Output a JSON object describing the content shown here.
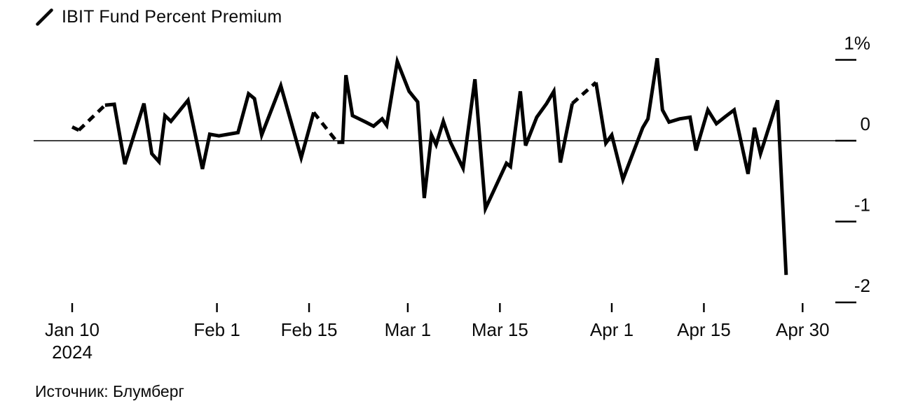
{
  "legend": {
    "series_label": "IBIT Fund Percent Premium",
    "marker": "diagonal-line"
  },
  "source_label": "Источник: Блумберг",
  "colors": {
    "background": "#ffffff",
    "line": "#000000",
    "axis": "#000000",
    "text": "#0a0a0a"
  },
  "chart_data": {
    "type": "line",
    "title": "IBIT Fund Percent Premium",
    "legend_position": "top-left",
    "grid": false,
    "zero_line": true,
    "x_axis": {
      "unit": "date",
      "t_unit": "days since Jan 10, 2024",
      "range": [
        0,
        111.5
      ],
      "ticks": [
        {
          "t": 0,
          "label": "Jan 10",
          "sublabel": "2024"
        },
        {
          "t": 22,
          "label": "Feb 1"
        },
        {
          "t": 36,
          "label": "Feb 15"
        },
        {
          "t": 51,
          "label": "Mar 1"
        },
        {
          "t": 65,
          "label": "Mar 15"
        },
        {
          "t": 82,
          "label": "Apr 1"
        },
        {
          "t": 96,
          "label": "Apr 15"
        },
        {
          "t": 111,
          "label": "Apr 30"
        }
      ]
    },
    "y_axis": {
      "unit": "percent",
      "side": "right",
      "range": [
        -2.2,
        1.1
      ],
      "ticks": [
        {
          "v": 1,
          "label": "1%"
        },
        {
          "v": 0,
          "label": "0"
        },
        {
          "v": -1,
          "label": "-1"
        },
        {
          "v": -2,
          "label": "-2"
        }
      ]
    },
    "segments": [
      {
        "style": "solid",
        "points": [
          [
            0,
            0.17
          ],
          [
            1,
            0.13
          ]
        ]
      },
      {
        "style": "dashed",
        "points": [
          [
            1,
            0.13
          ],
          [
            5,
            0.44
          ]
        ]
      },
      {
        "style": "solid",
        "points": [
          [
            5,
            0.44
          ],
          [
            6.4,
            0.45
          ],
          [
            8,
            -0.29
          ],
          [
            10.9,
            0.46
          ],
          [
            12.1,
            -0.16
          ],
          [
            13.2,
            -0.26
          ],
          [
            14.1,
            0.31
          ],
          [
            15,
            0.24
          ],
          [
            17.6,
            0.5
          ],
          [
            19.8,
            -0.35
          ],
          [
            20.9,
            0.08
          ],
          [
            22.3,
            0.06
          ],
          [
            25.2,
            0.1
          ],
          [
            26.8,
            0.58
          ],
          [
            27.7,
            0.52
          ],
          [
            28.8,
            0.07
          ],
          [
            31.7,
            0.68
          ],
          [
            34.8,
            -0.21
          ],
          [
            36.7,
            0.35
          ]
        ]
      },
      {
        "style": "dashed",
        "points": [
          [
            36.7,
            0.35
          ],
          [
            40.3,
            -0.02
          ]
        ]
      },
      {
        "style": "solid",
        "points": [
          [
            40.3,
            -0.02
          ],
          [
            41.1,
            -0.02
          ],
          [
            41.6,
            0.81
          ],
          [
            42.6,
            0.31
          ],
          [
            44.6,
            0.23
          ],
          [
            45.8,
            0.18
          ],
          [
            47.1,
            0.27
          ],
          [
            47.8,
            0.19
          ],
          [
            49.4,
            0.98
          ],
          [
            51.2,
            0.61
          ],
          [
            52.5,
            0.48
          ],
          [
            53.5,
            -0.71
          ],
          [
            54.6,
            0.07
          ],
          [
            55.3,
            -0.05
          ],
          [
            56.4,
            0.24
          ],
          [
            57.5,
            -0.02
          ],
          [
            59.4,
            -0.34
          ],
          [
            61.2,
            0.76
          ],
          [
            62.8,
            -0.84
          ],
          [
            66,
            -0.28
          ],
          [
            66.6,
            -0.32
          ],
          [
            68.1,
            0.61
          ],
          [
            68.9,
            -0.06
          ],
          [
            70.6,
            0.29
          ],
          [
            72.1,
            0.46
          ],
          [
            73.2,
            0.61
          ],
          [
            74.2,
            -0.27
          ],
          [
            76,
            0.46
          ]
        ]
      },
      {
        "style": "dashed",
        "points": [
          [
            76,
            0.46
          ],
          [
            79.6,
            0.72
          ]
        ]
      },
      {
        "style": "solid",
        "points": [
          [
            79.6,
            0.72
          ],
          [
            81.1,
            -0.03
          ],
          [
            82,
            0.07
          ],
          [
            83.7,
            -0.48
          ],
          [
            86.7,
            0.16
          ],
          [
            87.5,
            0.27
          ],
          [
            88.9,
            1.02
          ],
          [
            89.7,
            0.38
          ],
          [
            90.7,
            0.23
          ],
          [
            92.3,
            0.27
          ],
          [
            93.9,
            0.29
          ],
          [
            94.8,
            -0.12
          ],
          [
            96.6,
            0.38
          ],
          [
            97.9,
            0.21
          ],
          [
            99.3,
            0.3
          ],
          [
            100.6,
            0.38
          ],
          [
            102.7,
            -0.41
          ],
          [
            103.7,
            0.16
          ],
          [
            104.6,
            -0.16
          ],
          [
            107.2,
            0.5
          ],
          [
            108.5,
            -1.66
          ]
        ]
      }
    ]
  }
}
